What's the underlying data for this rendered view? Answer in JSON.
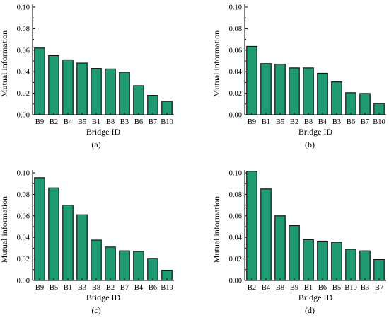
{
  "colors": {
    "bar": "#1f9b74",
    "bar_stroke": "#111111",
    "axis": "#000000"
  },
  "chart_data": [
    {
      "type": "bar",
      "panel_label": "(a)",
      "categories": [
        "B9",
        "B2",
        "B4",
        "B5",
        "B1",
        "B8",
        "B3",
        "B6",
        "B7",
        "B10"
      ],
      "values": [
        0.062,
        0.055,
        0.051,
        0.048,
        0.043,
        0.0425,
        0.0395,
        0.027,
        0.018,
        0.0125
      ],
      "xlabel": "Bridge ID",
      "ylabel": "Mutual information",
      "ylim": [
        0,
        0.1
      ],
      "yticks": [
        "0.00",
        "0.02",
        "0.04",
        "0.06",
        "0.08",
        "0.10"
      ],
      "grid": false
    },
    {
      "type": "bar",
      "panel_label": "(b)",
      "categories": [
        "B9",
        "B1",
        "B5",
        "B2",
        "B8",
        "B4",
        "B3",
        "B6",
        "B7",
        "B10"
      ],
      "values": [
        0.0635,
        0.0475,
        0.047,
        0.0435,
        0.0435,
        0.0385,
        0.0305,
        0.0205,
        0.0198,
        0.0105
      ],
      "xlabel": "Bridge ID",
      "ylabel": "Mutual information",
      "ylim": [
        0,
        0.1
      ],
      "yticks": [
        "0.00",
        "0.02",
        "0.04",
        "0.06",
        "0.08",
        "0.10"
      ],
      "grid": false
    },
    {
      "type": "bar",
      "panel_label": "(c)",
      "categories": [
        "B9",
        "B5",
        "B1",
        "B3",
        "B8",
        "B2",
        "B7",
        "B4",
        "B6",
        "B10"
      ],
      "values": [
        0.0955,
        0.086,
        0.07,
        0.061,
        0.0375,
        0.031,
        0.0275,
        0.027,
        0.0205,
        0.0095
      ],
      "xlabel": "Bridge ID",
      "ylabel": "Mutual information",
      "ylim": [
        0,
        0.1
      ],
      "yticks": [
        "0.00",
        "0.02",
        "0.04",
        "0.06",
        "0.08",
        "0.10"
      ],
      "grid": false
    },
    {
      "type": "bar",
      "panel_label": "(d)",
      "categories": [
        "B2",
        "B4",
        "B8",
        "B9",
        "B1",
        "B6",
        "B5",
        "B10",
        "B3",
        "B7"
      ],
      "values": [
        0.1015,
        0.085,
        0.06,
        0.051,
        0.038,
        0.0365,
        0.0355,
        0.029,
        0.0275,
        0.0195
      ],
      "xlabel": "Bridge ID",
      "ylabel": "Mutual information",
      "ylim": [
        0,
        0.1
      ],
      "yticks": [
        "0.00",
        "0.02",
        "0.04",
        "0.06",
        "0.08",
        "0.10"
      ],
      "grid": false
    }
  ]
}
